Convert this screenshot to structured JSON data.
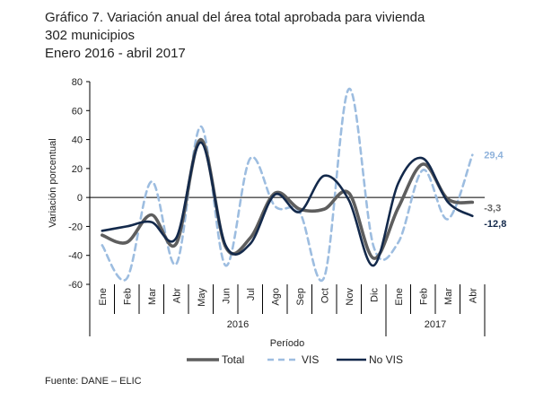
{
  "title_lines": [
    "Gráfico 7. Variación anual del área total aprobada para vivienda",
    "302 municipios",
    "Enero 2016 - abril 2017"
  ],
  "source": "Fuente: DANE – ELIC",
  "colors": {
    "total": "#5e5e5e",
    "vis": "#9dbde0",
    "novis": "#13294b",
    "label_total": "#666666",
    "label_vis": "#8eb2db"
  },
  "chart_data": {
    "type": "line",
    "xlabel": "Período",
    "ylabel": "Variación porcentual",
    "ylim": [
      -60,
      80
    ],
    "yticks": [
      80,
      60,
      40,
      20,
      0,
      -20,
      -40,
      -60
    ],
    "categories": [
      "Ene",
      "Feb",
      "Mar",
      "Abr",
      "May",
      "Jun",
      "Jul",
      "Ago",
      "Sep",
      "Oct",
      "Nov",
      "Dic",
      "Ene",
      "Feb",
      "Mar",
      "Abr"
    ],
    "years": [
      {
        "label": "2016",
        "from": 0,
        "to": 11
      },
      {
        "label": "2017",
        "from": 12,
        "to": 15
      }
    ],
    "series": [
      {
        "name": "Total",
        "key": "total",
        "values": [
          -26,
          -31,
          -12,
          -32,
          40,
          -34,
          -28,
          3,
          -8,
          -8,
          3,
          -42,
          -7,
          23,
          -1,
          -3.3
        ]
      },
      {
        "name": "VIS",
        "key": "vis",
        "values": [
          -33,
          -56,
          11,
          -46,
          49,
          -47,
          27,
          -6,
          -10,
          -55,
          75,
          -34,
          -31,
          19,
          -15,
          29.4
        ]
      },
      {
        "name": "No VIS",
        "key": "novis",
        "values": [
          -23,
          -20,
          -17,
          -28,
          38,
          -33,
          -32,
          2,
          -10,
          15,
          -2,
          -47,
          10,
          27,
          -3,
          -12.8
        ]
      }
    ],
    "end_labels": [
      {
        "key": "vis",
        "text": "29,4"
      },
      {
        "key": "total",
        "text": "-3,3"
      },
      {
        "key": "novis",
        "text": "-12,8"
      }
    ],
    "grid": false,
    "legend": "bottom"
  }
}
